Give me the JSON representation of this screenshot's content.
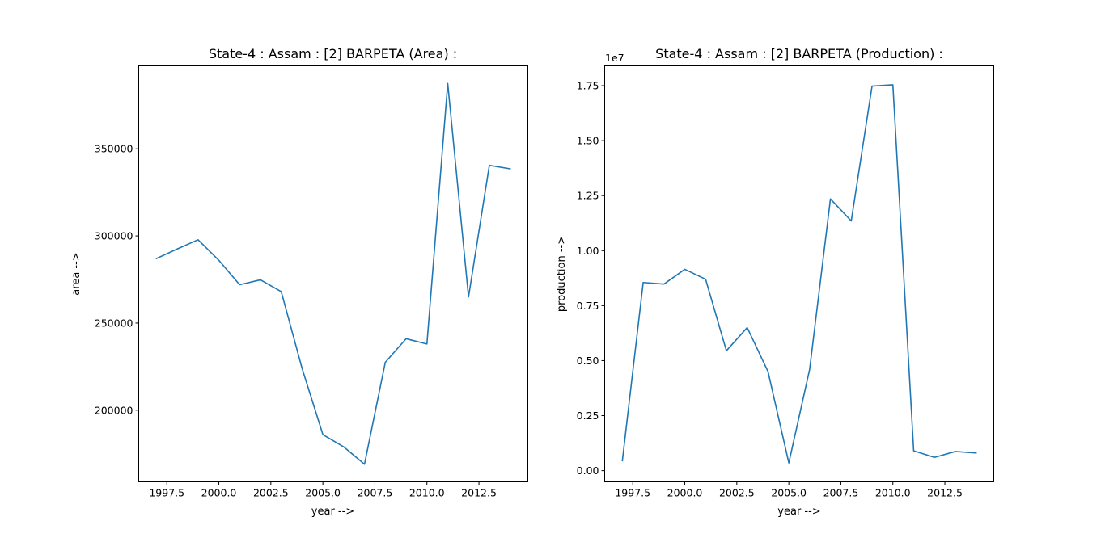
{
  "chart_data": [
    {
      "type": "line",
      "title": "State-4 : Assam : [2] BARPETA (Area) :",
      "xlabel": "year -->",
      "ylabel": "area -->",
      "offset_text": "",
      "x": [
        1997,
        1998,
        1999,
        2000,
        2001,
        2002,
        2003,
        2004,
        2005,
        2006,
        2007,
        2008,
        2009,
        2010,
        2011,
        2012,
        2013,
        2014
      ],
      "series": [
        {
          "values": [
            287000,
            292500,
            297800,
            286000,
            272000,
            274800,
            268000,
            224000,
            186000,
            179000,
            169000,
            227500,
            241000,
            238000,
            387500,
            265000,
            340500,
            338500
          ],
          "color": "#1f77b4"
        }
      ],
      "xlim": [
        1996.15,
        2014.85
      ],
      "ylim": [
        158900,
        397600
      ],
      "xticks": [
        1997.5,
        2000.0,
        2002.5,
        2005.0,
        2007.5,
        2010.0,
        2012.5
      ],
      "xtick_labels": [
        "1997.5",
        "2000.0",
        "2002.5",
        "2005.0",
        "2007.5",
        "2010.0",
        "2012.5"
      ],
      "yticks": [
        200000,
        250000,
        300000,
        350000
      ],
      "ytick_labels": [
        "200000",
        "250000",
        "300000",
        "350000"
      ],
      "grid": false
    },
    {
      "type": "line",
      "title": "State-4 : Assam : [2] BARPETA (Production) :",
      "xlabel": "year -->",
      "ylabel": "production -->",
      "offset_text": "1e7",
      "x": [
        1997,
        1998,
        1999,
        2000,
        2001,
        2002,
        2003,
        2004,
        2005,
        2006,
        2007,
        2008,
        2009,
        2010,
        2011,
        2012,
        2013,
        2014
      ],
      "series": [
        {
          "values": [
            0.045,
            0.855,
            0.848,
            0.915,
            0.87,
            0.545,
            0.65,
            0.45,
            0.035,
            0.46,
            1.235,
            1.135,
            1.748,
            1.754,
            0.09,
            0.06,
            0.087,
            0.08
          ],
          "color": "#1f77b4"
        }
      ],
      "xlim": [
        1996.15,
        2014.85
      ],
      "ylim": [
        -0.051,
        1.84
      ],
      "xticks": [
        1997.5,
        2000.0,
        2002.5,
        2005.0,
        2007.5,
        2010.0,
        2012.5
      ],
      "xtick_labels": [
        "1997.5",
        "2000.0",
        "2002.5",
        "2005.0",
        "2007.5",
        "2010.0",
        "2012.5"
      ],
      "yticks": [
        0.0,
        0.25,
        0.5,
        0.75,
        1.0,
        1.25,
        1.5,
        1.75
      ],
      "ytick_labels": [
        "0.00",
        "0.25",
        "0.50",
        "0.75",
        "1.00",
        "1.25",
        "1.50",
        "1.75"
      ],
      "grid": false
    }
  ]
}
